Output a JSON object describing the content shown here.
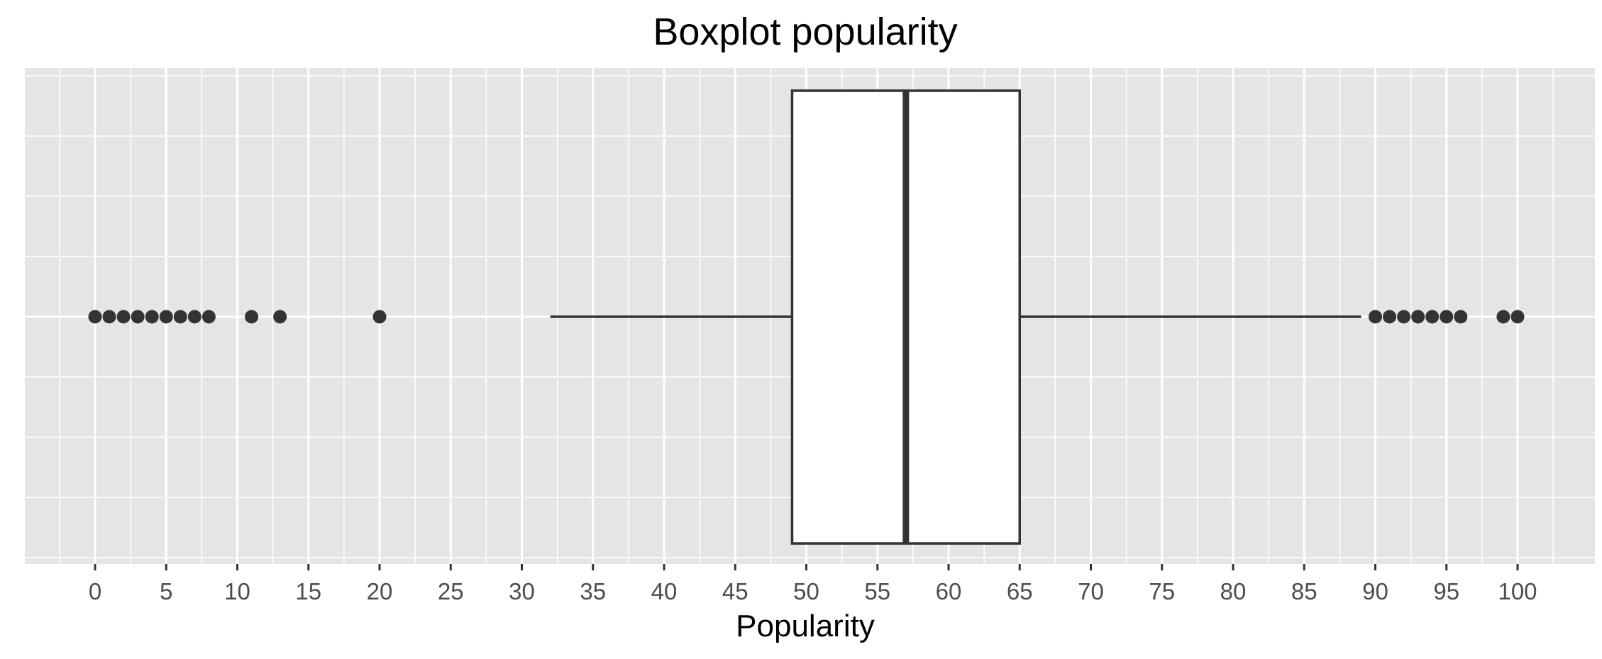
{
  "chart_data": {
    "type": "boxplot",
    "title": "Boxplot popularity",
    "xlabel": "Popularity",
    "ylabel": "",
    "orientation": "horizontal",
    "xlim": [
      -5,
      103
    ],
    "x_ticks": [
      0,
      5,
      10,
      15,
      20,
      25,
      30,
      35,
      40,
      45,
      50,
      55,
      60,
      65,
      70,
      75,
      80,
      85,
      90,
      95,
      100
    ],
    "grid": true,
    "box": {
      "whisker_low": 32,
      "q1": 49,
      "median": 57,
      "q3": 65,
      "whisker_high": 89
    },
    "outliers": [
      0,
      1,
      2,
      3,
      4,
      5,
      6,
      7,
      8,
      11,
      13,
      20,
      90,
      91,
      92,
      93,
      94,
      95,
      96,
      99,
      100
    ],
    "colors": {
      "panel_background": "#e5e5e5",
      "grid": "#ffffff",
      "box_fill": "#ffffff",
      "line": "#333333",
      "points": "#333333"
    }
  }
}
